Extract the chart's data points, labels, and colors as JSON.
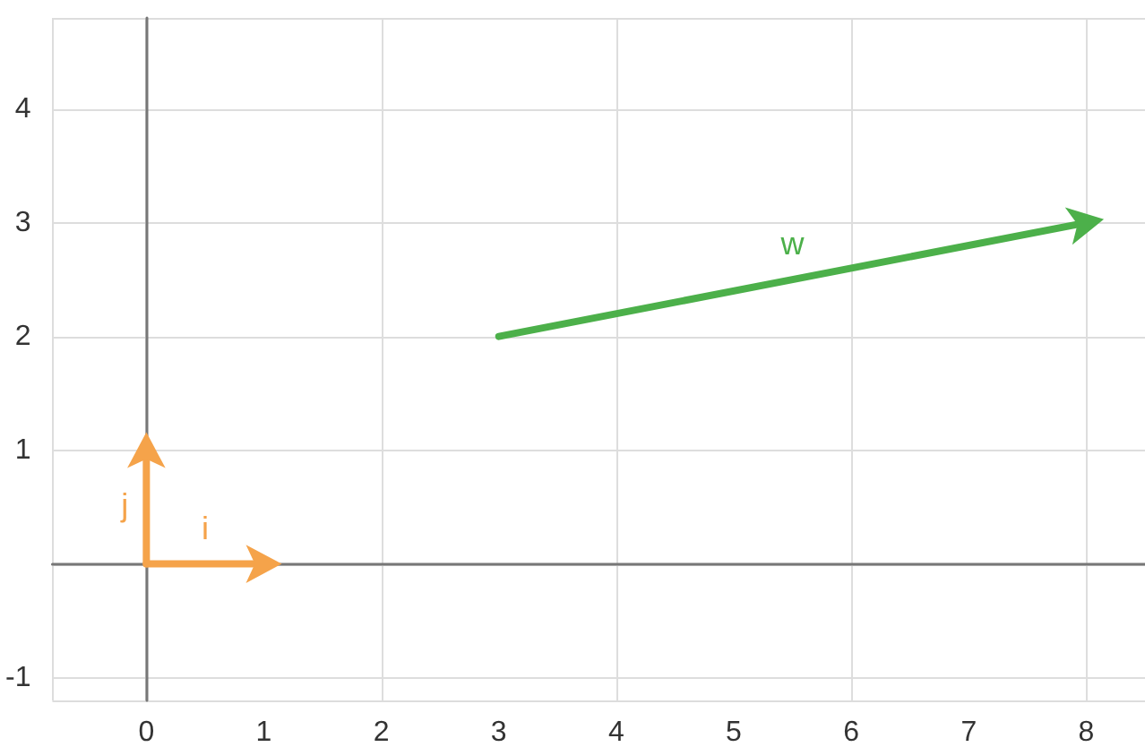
{
  "chart_data": {
    "type": "line",
    "series": [
      {
        "name": "w",
        "color": "#4cb04a",
        "x": [
          3,
          8
        ],
        "values": [
          2,
          3
        ]
      },
      {
        "name": "i",
        "color": "#f5a34a",
        "x": [
          0,
          1
        ],
        "values": [
          0,
          0
        ]
      },
      {
        "name": "j",
        "color": "#f5a34a",
        "x": [
          0,
          0
        ],
        "values": [
          0,
          1
        ]
      }
    ],
    "xlim": [
      -0.8,
      8.5
    ],
    "xticks": [
      0,
      1,
      2,
      3,
      4,
      5,
      6,
      7,
      8
    ],
    "ylim": [
      -1.2,
      4.8
    ],
    "yticks": [
      -1,
      1,
      2,
      3,
      4
    ],
    "grid": true,
    "line_style": "solid"
  }
}
